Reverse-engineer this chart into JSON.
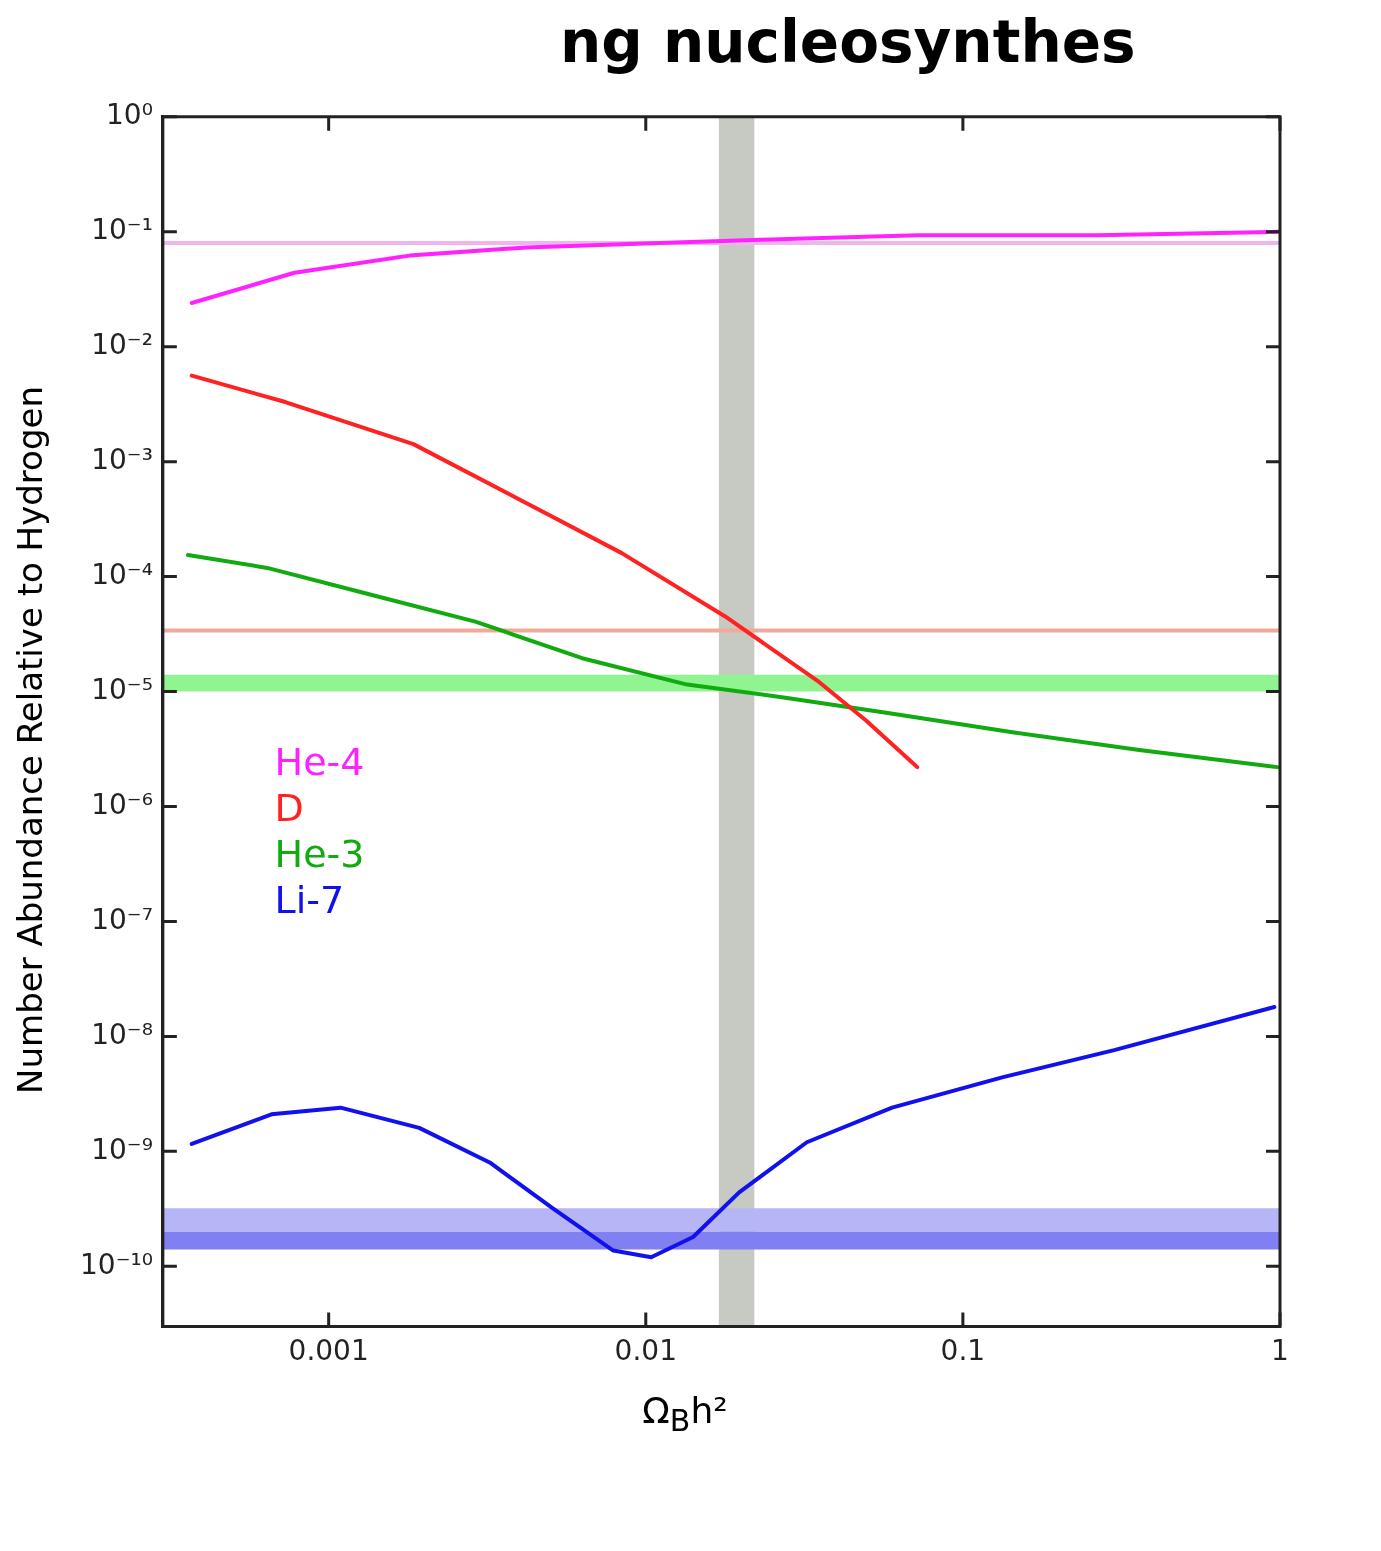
{
  "chart_data": {
    "type": "line",
    "title": "ng nucleosynthes",
    "xlabel": "Ω$_{B}$h²",
    "ylabel": "Number Abundance Relative to Hydrogen",
    "log": "xy",
    "legend": "left",
    "xlim": [
      0.0003,
      1
    ],
    "xticks": [
      0.001,
      0.01,
      0.1,
      1
    ],
    "ylim": [
      3e-11,
      1
    ],
    "yticks": [
      {
        "value": 1,
        "label": "10⁰"
      },
      {
        "value": 0.1,
        "label": "10⁻¹"
      },
      {
        "value": 0.01,
        "label": "10⁻²"
      },
      {
        "value": 0.001,
        "label": "10⁻³"
      },
      {
        "value": 0.0001,
        "label": "10⁻⁴"
      },
      {
        "value": 1e-05,
        "label": "10⁻⁵"
      },
      {
        "value": 1e-06,
        "label": "10⁻⁶"
      },
      {
        "value": 1e-07,
        "label": "10⁻⁷"
      },
      {
        "value": 1e-08,
        "label": "10⁻⁸"
      },
      {
        "value": 1e-09,
        "label": "10⁻⁹"
      },
      {
        "value": 1e-10,
        "label": "10⁻¹⁰"
      }
    ],
    "series": [
      {
        "name": "He-4",
        "color": "#ff22ff",
        "x": [
          0.00037,
          0.00078,
          0.0018,
          0.0042,
          0.0099,
          0.023,
          0.072,
          0.265,
          0.99
        ],
        "values": [
          0.024,
          0.044,
          0.062,
          0.073,
          0.079,
          0.085,
          0.093,
          0.093,
          0.1
        ]
      },
      {
        "name": "D",
        "color": "#ff2222",
        "x": [
          0.00037,
          0.00073,
          0.00185,
          0.00405,
          0.0084,
          0.0178,
          0.0348,
          0.0495,
          0.0718
        ],
        "values": [
          0.0056,
          0.0033,
          0.00142,
          0.00046,
          0.00016,
          4.5e-05,
          1.24e-05,
          5.6e-06,
          2.2e-06
        ]
      },
      {
        "name": "He-3",
        "color": "#11aa11",
        "x": [
          0.00036,
          0.00064,
          0.00136,
          0.0029,
          0.0063,
          0.0135,
          0.0279,
          0.058,
          0.145,
          0.36,
          0.98
        ],
        "values": [
          0.000154,
          0.000119,
          6.95e-05,
          4.06e-05,
          1.95e-05,
          1.15e-05,
          8.8e-06,
          6.5e-06,
          4.4e-06,
          3.1e-06,
          2.2e-06
        ]
      },
      {
        "name": "Li-7",
        "color": "#1111ee",
        "x": [
          0.00037,
          0.00066,
          0.00109,
          0.00193,
          0.00322,
          0.00508,
          0.0079,
          0.0104,
          0.0141,
          0.0197,
          0.0322,
          0.0598,
          0.133,
          0.3,
          0.96
        ],
        "values": [
          1.16e-09,
          2.1e-09,
          2.4e-09,
          1.6e-09,
          8e-10,
          3.2e-10,
          1.37e-10,
          1.2e-10,
          1.8e-10,
          4.4e-10,
          1.2e-09,
          2.4e-09,
          4.4e-09,
          7.6e-09,
          1.8e-08
        ]
      }
    ],
    "ref_lines": [
      {
        "axis": "y",
        "value": 0.08,
        "color": "#f0b4f0"
      },
      {
        "axis": "y",
        "value": 3.4e-05,
        "color": "#f0aa9a"
      }
    ],
    "bands": [
      {
        "axis": "x",
        "from": 0.017,
        "to": 0.022,
        "color": "#c6cac2"
      },
      {
        "axis": "y",
        "from": 1e-05,
        "to": 1.4e-05,
        "color": "#90f490"
      },
      {
        "axis": "y",
        "from": 2e-10,
        "to": 3.2e-10,
        "color": "#b6b6f6"
      },
      {
        "axis": "y",
        "from": 1.4e-10,
        "to": 2e-10,
        "color": "#8080f2"
      }
    ]
  }
}
